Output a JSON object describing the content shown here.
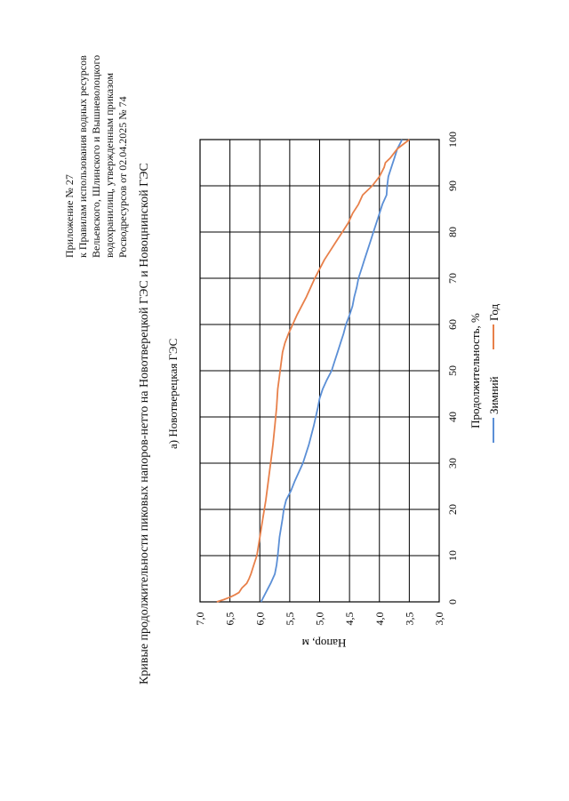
{
  "appendix": {
    "line1": "Приложение № 27",
    "line2": "к  Правилам  использования  водных  ресурсов",
    "line3": "Вельевского,  Шлинского  и  Вышневолоцкого",
    "line4": "водохранилищ,         утвержденным         приказом",
    "line5": "Росводресурсов от 02.04.2025 № 74"
  },
  "main_title": "Кривые продолжительности пиковых напоров-нетто на Новотверецкой ГЭС и Новоцнинской ГЭС",
  "subtitle": "а) Новотверецкая ГЭС",
  "chart_data": {
    "type": "line",
    "title": "",
    "xlabel": "Продолжительность, %",
    "ylabel": "Напор, м",
    "xlim": [
      0,
      100
    ],
    "ylim": [
      3.0,
      7.0
    ],
    "x_ticks": [
      "0",
      "10",
      "20",
      "30",
      "40",
      "50",
      "60",
      "70",
      "80",
      "90",
      "100"
    ],
    "y_ticks": [
      "3,0",
      "3,5",
      "4,0",
      "4,5",
      "5,0",
      "5,5",
      "6,0",
      "6,5",
      "7,0"
    ],
    "grid": true,
    "legend_position": "bottom",
    "series": [
      {
        "name": "Зимний",
        "color": "#5b8fd6",
        "x": [
          0,
          2,
          4,
          6,
          8,
          10,
          14,
          18,
          20,
          22,
          24,
          26,
          28,
          30,
          34,
          38,
          42,
          44,
          46,
          48,
          50,
          52,
          54,
          56,
          58,
          60,
          62,
          64,
          66,
          68,
          70,
          72,
          74,
          76,
          78,
          80,
          82,
          84,
          86,
          88,
          90,
          92,
          94,
          96,
          98,
          100
        ],
        "y": [
          5.98,
          5.9,
          5.82,
          5.75,
          5.72,
          5.7,
          5.67,
          5.62,
          5.6,
          5.56,
          5.48,
          5.42,
          5.35,
          5.28,
          5.18,
          5.1,
          5.03,
          5.0,
          4.95,
          4.88,
          4.8,
          4.75,
          4.7,
          4.65,
          4.6,
          4.56,
          4.5,
          4.45,
          4.42,
          4.38,
          4.35,
          4.3,
          4.25,
          4.2,
          4.15,
          4.1,
          4.05,
          4.0,
          3.95,
          3.88,
          3.87,
          3.85,
          3.8,
          3.75,
          3.7,
          3.62
        ]
      },
      {
        "name": "Год",
        "color": "#e8804a",
        "x": [
          0,
          0.5,
          1,
          1.5,
          2,
          3,
          4,
          5,
          6,
          8,
          10,
          14,
          18,
          22,
          26,
          30,
          34,
          38,
          42,
          46,
          50,
          54,
          56,
          58,
          60,
          62,
          64,
          66,
          68,
          70,
          72,
          74,
          76,
          78,
          80,
          82,
          84,
          86,
          88,
          90,
          92,
          94,
          95,
          96,
          98,
          100
        ],
        "y": [
          6.72,
          6.6,
          6.5,
          6.42,
          6.35,
          6.3,
          6.22,
          6.18,
          6.15,
          6.1,
          6.05,
          6.0,
          5.95,
          5.9,
          5.86,
          5.82,
          5.78,
          5.75,
          5.72,
          5.7,
          5.66,
          5.62,
          5.58,
          5.52,
          5.45,
          5.38,
          5.3,
          5.22,
          5.15,
          5.08,
          5.0,
          4.92,
          4.82,
          4.72,
          4.62,
          4.52,
          4.45,
          4.35,
          4.28,
          4.12,
          4.0,
          3.92,
          3.9,
          3.82,
          3.7,
          3.5
        ]
      }
    ]
  }
}
